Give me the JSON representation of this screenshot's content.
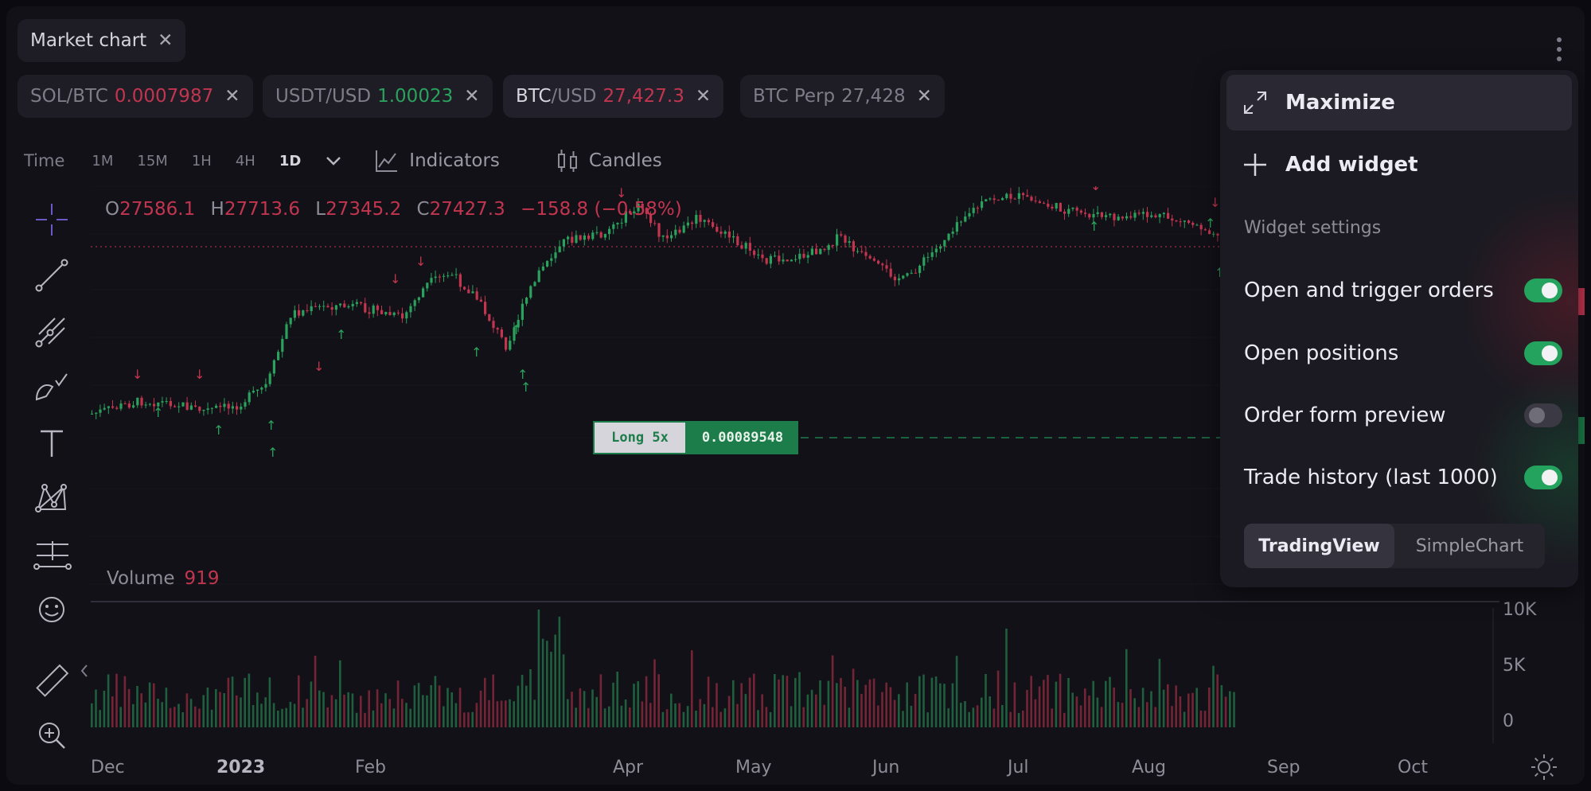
{
  "window": {
    "tab_label": "Market chart",
    "close_glyph": "✕"
  },
  "pairs": [
    {
      "base": "SOL",
      "quote": "BTC",
      "price": "0.0007987",
      "price_color": "red"
    },
    {
      "base": "USDT",
      "quote": "USD",
      "price": "1.00023",
      "price_color": "green"
    },
    {
      "base": "BTC",
      "quote": "USD",
      "price": "27,427.3",
      "price_color": "red",
      "active": true
    },
    {
      "base": "BTC Perp",
      "quote": "",
      "price": "27,428",
      "price_color": "none"
    }
  ],
  "timebar": {
    "label": "Time",
    "intervals": [
      "1M",
      "15M",
      "1H",
      "4H",
      "1D"
    ],
    "selected": "1D",
    "indicators_label": "Indicators",
    "candles_label": "Candles"
  },
  "ohlc": {
    "o_label": "O",
    "o": "27586.1",
    "h_label": "H",
    "h": "27713.6",
    "l_label": "L",
    "l": "27345.2",
    "c_label": "C",
    "c": "27427.3",
    "change": "−158.8 (−0.58%)"
  },
  "volume": {
    "label": "Volume",
    "value": "919"
  },
  "position_tag": {
    "side": "Long 5x",
    "price": "0.00089548"
  },
  "menu": {
    "maximize": "Maximize",
    "add_widget": "Add widget",
    "settings_title": "Widget settings",
    "options": [
      {
        "label": "Open and trigger orders",
        "on": true
      },
      {
        "label": "Open positions",
        "on": true
      },
      {
        "label": "Order form preview",
        "on": false
      },
      {
        "label": "Trade history (last 1000)",
        "on": true
      }
    ],
    "segments": [
      "TradingView",
      "SimpleChart"
    ],
    "selected_segment": "TradingView"
  },
  "chart_data": {
    "type": "candlestick",
    "x_ticks": [
      "Dec",
      "2023",
      "Feb",
      "Apr",
      "May",
      "Jun",
      "Jul",
      "Aug",
      "Sep",
      "Oct"
    ],
    "volume_ticks": [
      "10K",
      "5K",
      "0"
    ],
    "colors": {
      "up": "#2aa15c",
      "down": "#c2354f"
    }
  }
}
